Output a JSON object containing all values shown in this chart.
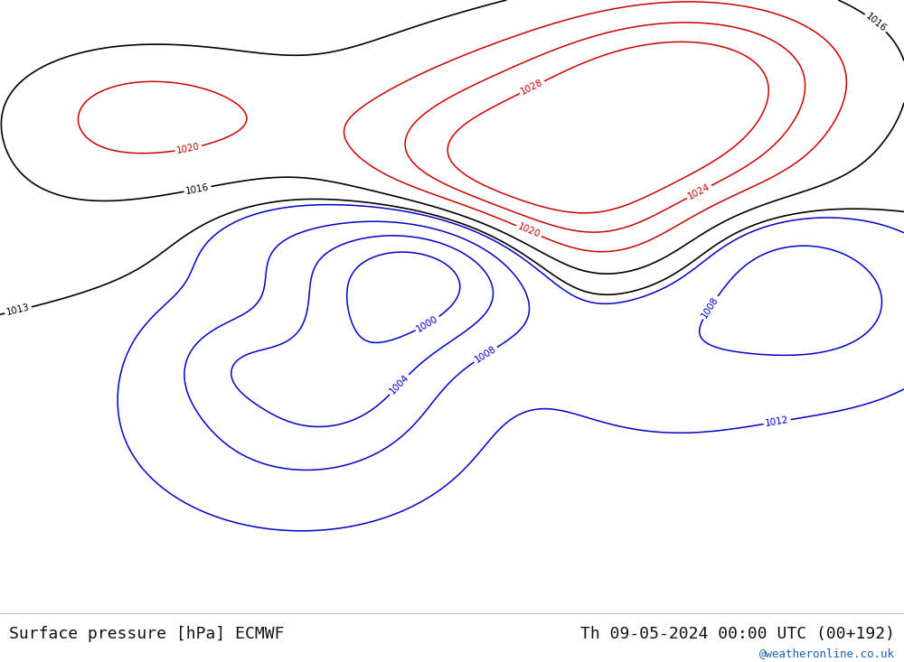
{
  "title_left": "Surface pressure [hPa] ECMWF",
  "title_right": "Th 09-05-2024 00:00 UTC (00+192)",
  "watermark": "@weatheronline.co.uk",
  "fig_width": 10.0,
  "fig_height": 7.33,
  "dpi": 100,
  "land_color": "#b5e890",
  "sea_color": "#d2e8e8",
  "highland_color": "#c8c8c8",
  "border_color": "#888888",
  "contour_blue": "#0000cc",
  "contour_black": "#000000",
  "contour_red": "#cc0000",
  "font_size_title": 13,
  "font_size_watermark": 9,
  "text_color": "#111111",
  "watermark_color": "#1a5faa",
  "lon_min": 14,
  "lon_max": 116,
  "lat_min": -16,
  "lat_max": 57
}
